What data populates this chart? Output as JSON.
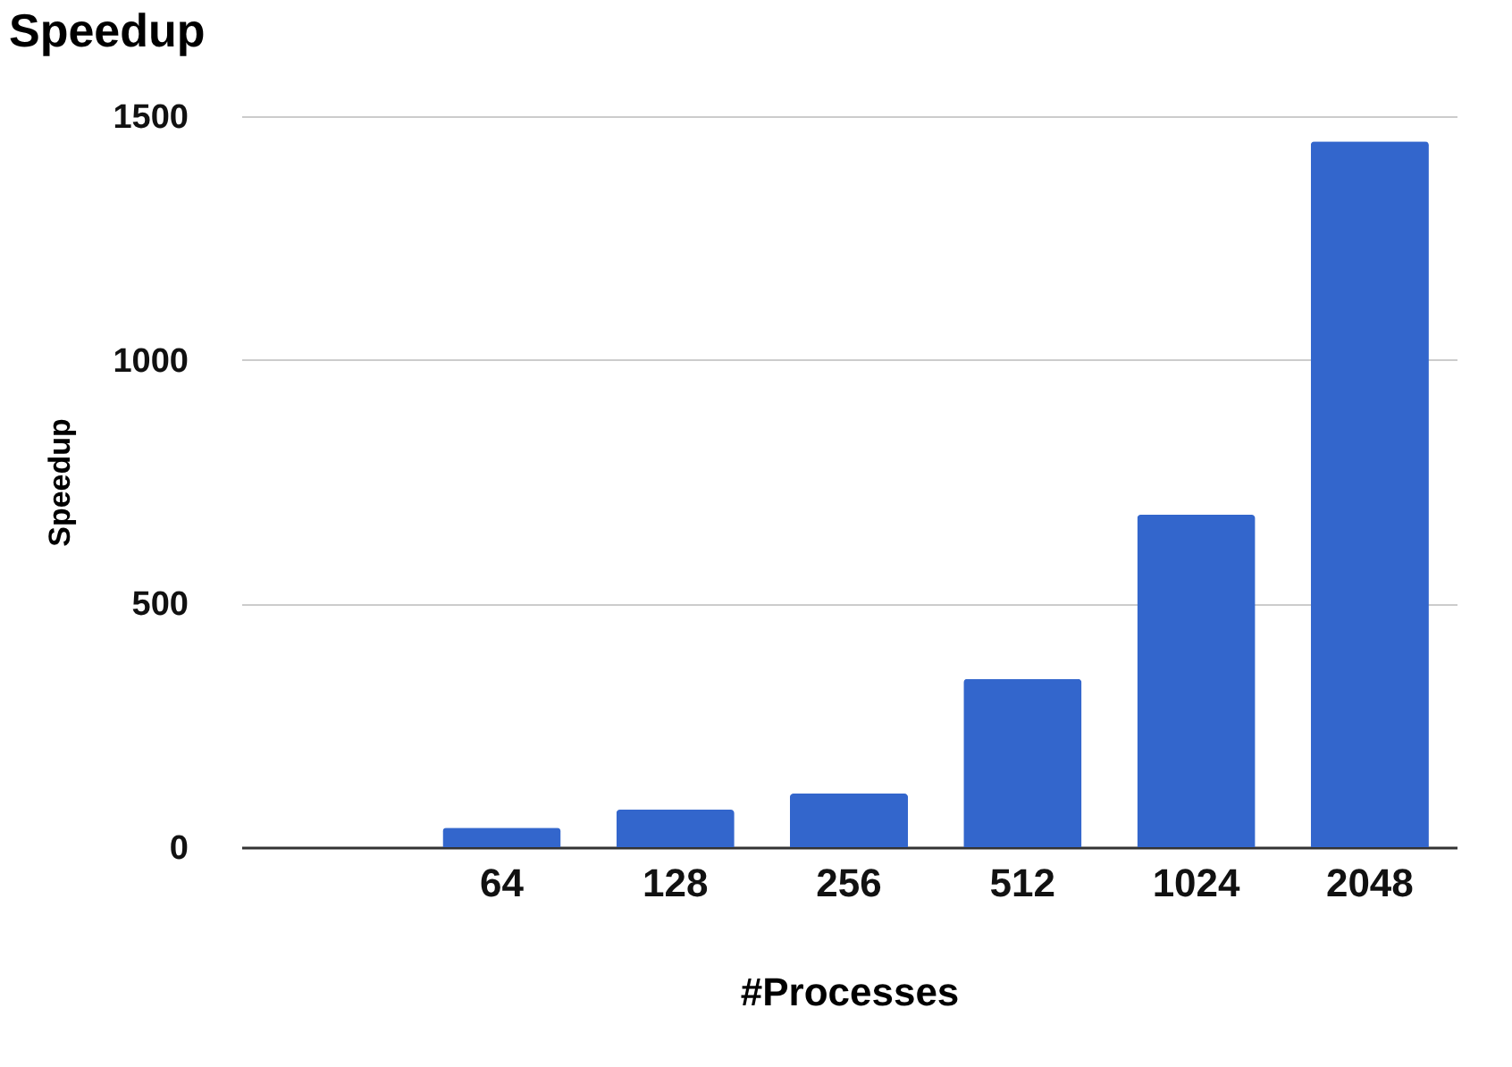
{
  "chart_data": {
    "type": "bar",
    "title": "Speedup",
    "xlabel": "#Processes",
    "ylabel": "Speedup",
    "categories": [
      null,
      "64",
      "128",
      "256",
      "512",
      "1024",
      "2048"
    ],
    "values": [
      null,
      40,
      77,
      110,
      345,
      682,
      1448
    ],
    "color": "#3366cc",
    "ylim": [
      0,
      1500
    ],
    "yticks": [
      0,
      500,
      1000,
      1500
    ],
    "grid": "y"
  }
}
